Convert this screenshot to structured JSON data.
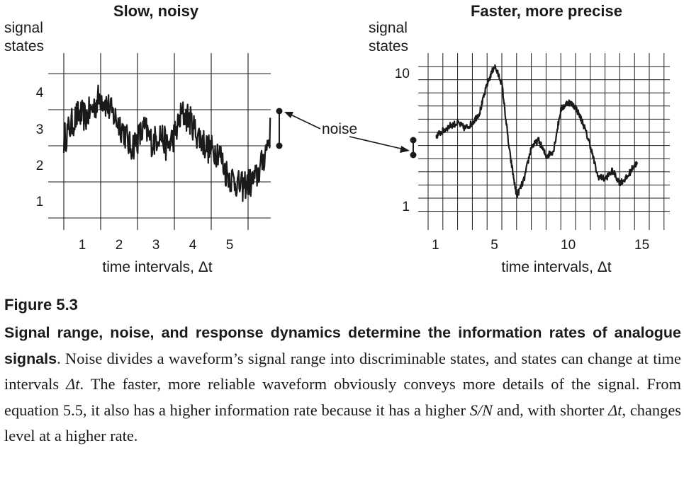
{
  "figure": {
    "left_panel": {
      "title": "Slow, noisy",
      "ylabel_line1": "signal",
      "ylabel_line2": "states",
      "ytick_labels": [
        "4",
        "3",
        "2",
        "1"
      ],
      "xtick_labels": [
        "1",
        "2",
        "3",
        "4",
        "5"
      ],
      "xlabel": "time intervals, Δt"
    },
    "right_panel": {
      "title": "Faster, more precise",
      "ylabel_line1": "signal",
      "ylabel_line2": "states",
      "ytick_labels": [
        "10",
        "1"
      ],
      "xtick_labels": [
        "1",
        "5",
        "10",
        "15"
      ],
      "xlabel": "time intervals, Δt"
    },
    "annotation": "noise"
  },
  "caption": {
    "label": "Figure 5.3",
    "bold_sentence": "Signal range, noise, and response dynamics determine the information rates of analogue signals",
    "text_1": ". Noise divides a waveform’s signal range into discriminable states, and states can change at time intervals ",
    "dt_1": "Δt",
    "text_2": ". The faster, more reliable waveform obviously conveys more details of the signal. From equation 5.5, it also has a higher information rate because it has a higher ",
    "sn": "S/N",
    "text_3": " and, with shorter ",
    "dt_2": "Δt",
    "text_4": ", changes level at a higher rate."
  },
  "chart_data": [
    {
      "type": "line",
      "title": "Slow, noisy",
      "ylabel": "signal states",
      "xlabel": "time intervals, Δt",
      "xlim": [
        0,
        5.6
      ],
      "ylim": [
        0.5,
        4.5
      ],
      "x_ticks": [
        1,
        2,
        3,
        4,
        5
      ],
      "y_ticks": [
        1,
        2,
        3,
        4
      ],
      "grid": true,
      "series": [
        {
          "x": [
            0,
            0.2,
            0.4,
            0.6,
            0.8,
            1.0,
            1.2,
            1.4,
            1.6,
            1.8,
            2.0,
            2.2,
            2.4,
            2.6,
            2.8,
            3.0,
            3.2,
            3.4,
            3.6,
            3.8,
            4.0,
            4.2,
            4.4,
            4.6,
            4.8,
            5.0,
            5.2,
            5.4,
            5.6
          ],
          "values": [
            2.7,
            3.1,
            3.4,
            3.3,
            3.6,
            3.9,
            3.6,
            3.3,
            3.0,
            2.5,
            2.7,
            3.0,
            2.6,
            2.9,
            2.5,
            2.8,
            3.4,
            3.3,
            2.9,
            2.6,
            2.4,
            2.4,
            1.8,
            1.6,
            1.4,
            1.5,
            1.6,
            2.1,
            2.9
          ],
          "noise_amplitude": 0.45
        }
      ]
    },
    {
      "type": "line",
      "title": "Faster, more precise",
      "ylabel": "signal states",
      "xlabel": "time intervals, Δt",
      "xlim": [
        0,
        15
      ],
      "ylim": [
        0,
        11
      ],
      "x_ticks": [
        1,
        5,
        10,
        15
      ],
      "y_tick_labels": {
        "10": "10",
        "1": "1"
      },
      "grid": true,
      "series": [
        {
          "x": [
            0.5,
            1,
            1.5,
            2,
            2.5,
            3,
            3.5,
            4,
            4.5,
            5,
            5.5,
            6,
            6.5,
            7,
            7.5,
            8,
            8.5,
            9,
            9.5,
            10,
            10.5,
            11,
            11.5,
            12,
            12.5,
            13,
            13.5,
            14
          ],
          "values": [
            5.5,
            5.9,
            6.3,
            6.5,
            6.1,
            6.5,
            7.3,
            9.4,
            10.8,
            9.5,
            4.5,
            1.0,
            2.2,
            4.7,
            5.2,
            4.0,
            4.4,
            7.5,
            8.1,
            7.7,
            6.5,
            4.8,
            2.5,
            2.3,
            2.9,
            2.0,
            2.4,
            3.4
          ],
          "noise_amplitude": 0.25
        }
      ]
    }
  ]
}
